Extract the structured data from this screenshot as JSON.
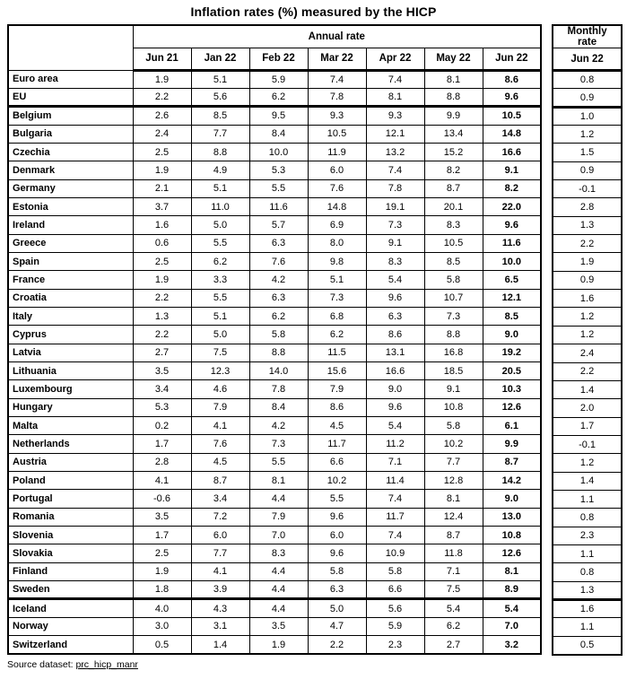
{
  "title": "Inflation rates (%) measured by the HICP",
  "annual": {
    "header": "Annual rate",
    "columns": [
      "Jun 21",
      "Jan 22",
      "Feb 22",
      "Mar 22",
      "Apr 22",
      "May 22",
      "Jun 22"
    ]
  },
  "monthly": {
    "header": "Monthly\nrate",
    "column": "Jun 22"
  },
  "groups": [
    {
      "name": "aggregates",
      "rows": [
        {
          "name": "Euro area",
          "annual": [
            "1.9",
            "5.1",
            "5.9",
            "7.4",
            "7.4",
            "8.1",
            "8.6"
          ],
          "monthly": "0.8"
        },
        {
          "name": "EU",
          "annual": [
            "2.2",
            "5.6",
            "6.2",
            "7.8",
            "8.1",
            "8.8",
            "9.6"
          ],
          "monthly": "0.9"
        }
      ]
    },
    {
      "name": "eu-members",
      "rows": [
        {
          "name": "Belgium",
          "annual": [
            "2.6",
            "8.5",
            "9.5",
            "9.3",
            "9.3",
            "9.9",
            "10.5"
          ],
          "monthly": "1.0"
        },
        {
          "name": "Bulgaria",
          "annual": [
            "2.4",
            "7.7",
            "8.4",
            "10.5",
            "12.1",
            "13.4",
            "14.8"
          ],
          "monthly": "1.2"
        },
        {
          "name": "Czechia",
          "annual": [
            "2.5",
            "8.8",
            "10.0",
            "11.9",
            "13.2",
            "15.2",
            "16.6"
          ],
          "monthly": "1.5"
        },
        {
          "name": "Denmark",
          "annual": [
            "1.9",
            "4.9",
            "5.3",
            "6.0",
            "7.4",
            "8.2",
            "9.1"
          ],
          "monthly": "0.9"
        },
        {
          "name": "Germany",
          "annual": [
            "2.1",
            "5.1",
            "5.5",
            "7.6",
            "7.8",
            "8.7",
            "8.2"
          ],
          "monthly": "-0.1"
        },
        {
          "name": "Estonia",
          "annual": [
            "3.7",
            "11.0",
            "11.6",
            "14.8",
            "19.1",
            "20.1",
            "22.0"
          ],
          "monthly": "2.8"
        },
        {
          "name": "Ireland",
          "annual": [
            "1.6",
            "5.0",
            "5.7",
            "6.9",
            "7.3",
            "8.3",
            "9.6"
          ],
          "monthly": "1.3"
        },
        {
          "name": "Greece",
          "annual": [
            "0.6",
            "5.5",
            "6.3",
            "8.0",
            "9.1",
            "10.5",
            "11.6"
          ],
          "monthly": "2.2"
        },
        {
          "name": "Spain",
          "annual": [
            "2.5",
            "6.2",
            "7.6",
            "9.8",
            "8.3",
            "8.5",
            "10.0"
          ],
          "monthly": "1.9"
        },
        {
          "name": "France",
          "annual": [
            "1.9",
            "3.3",
            "4.2",
            "5.1",
            "5.4",
            "5.8",
            "6.5"
          ],
          "monthly": "0.9"
        },
        {
          "name": "Croatia",
          "annual": [
            "2.2",
            "5.5",
            "6.3",
            "7.3",
            "9.6",
            "10.7",
            "12.1"
          ],
          "monthly": "1.6"
        },
        {
          "name": "Italy",
          "annual": [
            "1.3",
            "5.1",
            "6.2",
            "6.8",
            "6.3",
            "7.3",
            "8.5"
          ],
          "monthly": "1.2"
        },
        {
          "name": "Cyprus",
          "annual": [
            "2.2",
            "5.0",
            "5.8",
            "6.2",
            "8.6",
            "8.8",
            "9.0"
          ],
          "monthly": "1.2"
        },
        {
          "name": "Latvia",
          "annual": [
            "2.7",
            "7.5",
            "8.8",
            "11.5",
            "13.1",
            "16.8",
            "19.2"
          ],
          "monthly": "2.4"
        },
        {
          "name": "Lithuania",
          "annual": [
            "3.5",
            "12.3",
            "14.0",
            "15.6",
            "16.6",
            "18.5",
            "20.5"
          ],
          "monthly": "2.2"
        },
        {
          "name": "Luxembourg",
          "annual": [
            "3.4",
            "4.6",
            "7.8",
            "7.9",
            "9.0",
            "9.1",
            "10.3"
          ],
          "monthly": "1.4"
        },
        {
          "name": "Hungary",
          "annual": [
            "5.3",
            "7.9",
            "8.4",
            "8.6",
            "9.6",
            "10.8",
            "12.6"
          ],
          "monthly": "2.0"
        },
        {
          "name": "Malta",
          "annual": [
            "0.2",
            "4.1",
            "4.2",
            "4.5",
            "5.4",
            "5.8",
            "6.1"
          ],
          "monthly": "1.7"
        },
        {
          "name": "Netherlands",
          "annual": [
            "1.7",
            "7.6",
            "7.3",
            "11.7",
            "11.2",
            "10.2",
            "9.9"
          ],
          "monthly": "-0.1"
        },
        {
          "name": "Austria",
          "annual": [
            "2.8",
            "4.5",
            "5.5",
            "6.6",
            "7.1",
            "7.7",
            "8.7"
          ],
          "monthly": "1.2"
        },
        {
          "name": "Poland",
          "annual": [
            "4.1",
            "8.7",
            "8.1",
            "10.2",
            "11.4",
            "12.8",
            "14.2"
          ],
          "monthly": "1.4"
        },
        {
          "name": "Portugal",
          "annual": [
            "-0.6",
            "3.4",
            "4.4",
            "5.5",
            "7.4",
            "8.1",
            "9.0"
          ],
          "monthly": "1.1"
        },
        {
          "name": "Romania",
          "annual": [
            "3.5",
            "7.2",
            "7.9",
            "9.6",
            "11.7",
            "12.4",
            "13.0"
          ],
          "monthly": "0.8"
        },
        {
          "name": "Slovenia",
          "annual": [
            "1.7",
            "6.0",
            "7.0",
            "6.0",
            "7.4",
            "8.7",
            "10.8"
          ],
          "monthly": "2.3"
        },
        {
          "name": "Slovakia",
          "annual": [
            "2.5",
            "7.7",
            "8.3",
            "9.6",
            "10.9",
            "11.8",
            "12.6"
          ],
          "monthly": "1.1"
        },
        {
          "name": "Finland",
          "annual": [
            "1.9",
            "4.1",
            "4.4",
            "5.8",
            "5.8",
            "7.1",
            "8.1"
          ],
          "monthly": "0.8"
        },
        {
          "name": "Sweden",
          "annual": [
            "1.8",
            "3.9",
            "4.4",
            "6.3",
            "6.6",
            "7.5",
            "8.9"
          ],
          "monthly": "1.3"
        }
      ]
    },
    {
      "name": "efta",
      "rows": [
        {
          "name": "Iceland",
          "annual": [
            "4.0",
            "4.3",
            "4.4",
            "5.0",
            "5.6",
            "5.4",
            "5.4"
          ],
          "monthly": "1.6"
        },
        {
          "name": "Norway",
          "annual": [
            "3.0",
            "3.1",
            "3.5",
            "4.7",
            "5.9",
            "6.2",
            "7.0"
          ],
          "monthly": "1.1"
        },
        {
          "name": "Switzerland",
          "annual": [
            "0.5",
            "1.4",
            "1.9",
            "2.2",
            "2.3",
            "2.7",
            "3.2"
          ],
          "monthly": "0.5"
        }
      ]
    }
  ],
  "footer": {
    "source_label": "Source dataset: ",
    "source_link": "prc_hicp_manr"
  },
  "colors": {
    "border": "#000000",
    "text": "#000000",
    "background": "#ffffff"
  }
}
